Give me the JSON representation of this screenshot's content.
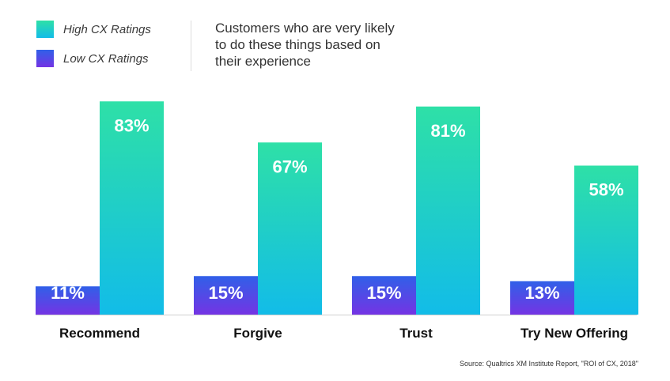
{
  "legend": {
    "items": [
      {
        "label": "High CX Ratings",
        "color_top": "#2EE0A7",
        "color_bottom": "#12BCE8"
      },
      {
        "label": "Low CX Ratings",
        "color_top": "#3060E8",
        "color_bottom": "#7434E4"
      }
    ]
  },
  "subtitle": "Customers who are very likely to do these things based on their experience",
  "source": "Source: Qualtrics XM Institute Report, \"ROI of CX, 2018\"",
  "chart_data": {
    "type": "bar",
    "title": "Customers who are very likely to do these things based on their experience",
    "categories": [
      "Recommend",
      "Forgive",
      "Trust",
      "Try New Offering"
    ],
    "series": [
      {
        "name": "Low CX Ratings",
        "values": [
          11,
          15,
          15,
          13
        ],
        "labels": [
          "11%",
          "15%",
          "15%",
          "13%"
        ]
      },
      {
        "name": "High CX Ratings",
        "values": [
          83,
          67,
          81,
          58
        ],
        "labels": [
          "83%",
          "67%",
          "81%",
          "58%"
        ]
      }
    ],
    "ylim": [
      0,
      100
    ],
    "xlabel": "",
    "ylabel": "",
    "grid": false,
    "legend_position": "top-left"
  }
}
